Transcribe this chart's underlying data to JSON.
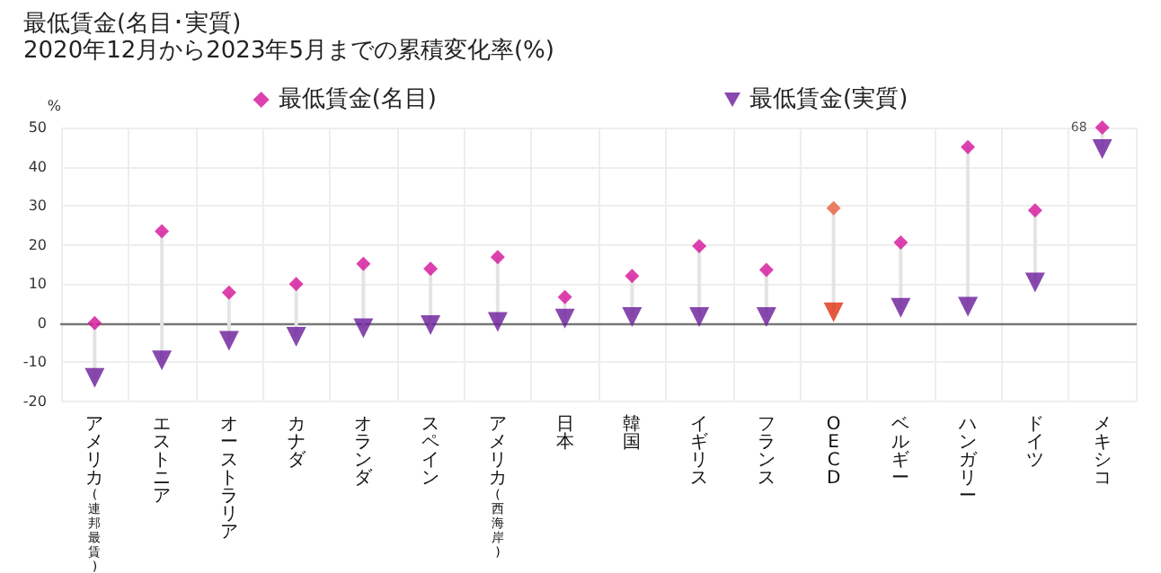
{
  "chart_data": {
    "type": "scatter",
    "title": "最低賃金(名目･実質)",
    "subtitle": "2020年12月から2023年5月までの累積変化率(%)",
    "ylabel": "%",
    "categories": [
      "アメリカ(連邦最賃)",
      "エストニア",
      "オーストラリア",
      "カナダ",
      "オランダ",
      "スペイン",
      "アメリカ(西海岸)",
      "日本",
      "韓国",
      "イギリス",
      "フランス",
      "OECD",
      "ベルギー",
      "ハンガリー",
      "ドイツ",
      "メキシコ"
    ],
    "series": [
      {
        "name": "最低賃金(名目)",
        "color": "#d4119a",
        "marker": "diamond",
        "colors": [
          "#d4119a",
          "#d4119a",
          "#d4119a",
          "#d4119a",
          "#d4119a",
          "#d4119a",
          "#d4119a",
          "#d4119a",
          "#d4119a",
          "#d4119a",
          "#d4119a",
          "#e8603c",
          "#d4119a",
          "#d4119a",
          "#d4119a",
          "#d4119a"
        ],
        "values": [
          0,
          23.5,
          7.8,
          10,
          15.2,
          13.9,
          16.9,
          6.7,
          12.1,
          19.7,
          13.6,
          29.4,
          20.6,
          45,
          28.8,
          50
        ]
      },
      {
        "name": "最低賃金(実質)",
        "color": "#6a1b9a",
        "marker": "triangle",
        "colors": [
          "#6a1b9a",
          "#6a1b9a",
          "#6a1b9a",
          "#6a1b9a",
          "#6a1b9a",
          "#6a1b9a",
          "#6a1b9a",
          "#6a1b9a",
          "#6a1b9a",
          "#6a1b9a",
          "#6a1b9a",
          "#e03010",
          "#6a1b9a",
          "#6a1b9a",
          "#6a1b9a",
          "#6a1b9a"
        ],
        "values": [
          -14,
          -9.5,
          -4.5,
          -3.5,
          -1.3,
          -0.5,
          0.3,
          1.2,
          1.6,
          1.6,
          1.6,
          2.8,
          3.9,
          4.2,
          10.4,
          44.5
        ]
      }
    ],
    "annotations": [
      {
        "text": "68",
        "x": "メキシコ",
        "y": 50
      }
    ],
    "ylim": [
      -20,
      50
    ],
    "yticks": [
      -20,
      -10,
      0,
      10,
      20,
      30,
      40,
      50
    ],
    "grid": true,
    "legend": "top"
  }
}
